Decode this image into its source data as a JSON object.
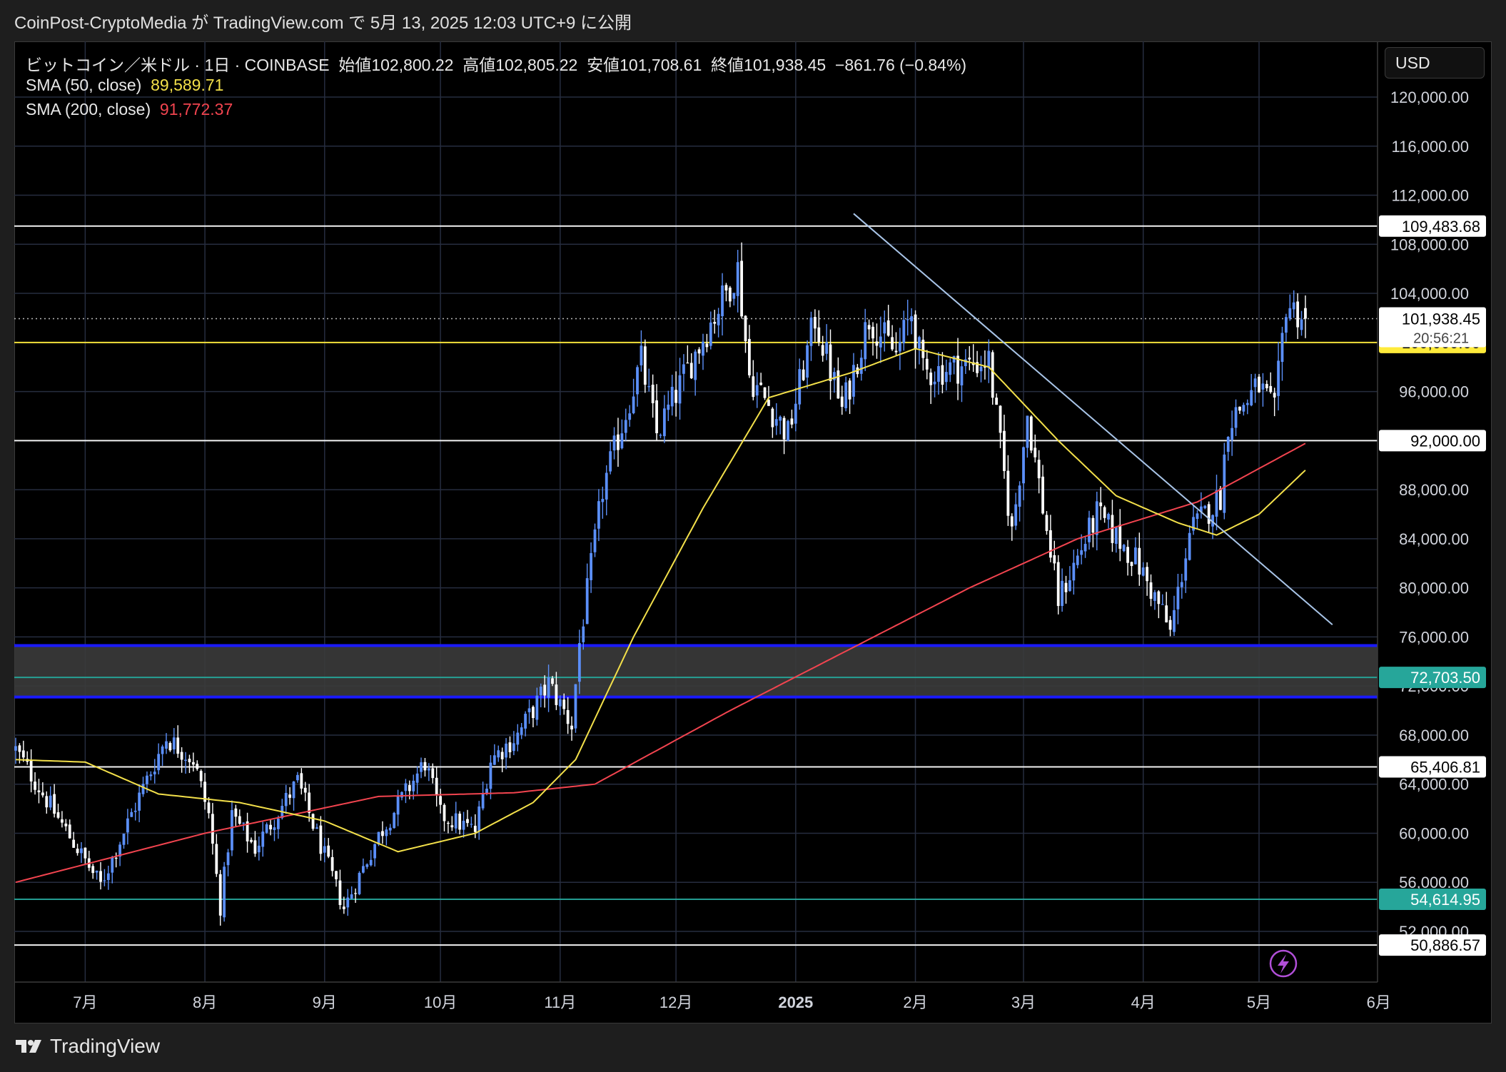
{
  "header": {
    "caption": "CoinPost-CryptoMedia が TradingView.com で 5月 13, 2025 12:03 UTC+9 に公開"
  },
  "legend": {
    "symbol": "ビットコイン／米ドル · 1日 · COINBASE",
    "open_label": "始値",
    "open": "102,800.22",
    "high_label": "高値",
    "high": "102,805.22",
    "low_label": "安値",
    "low": "101,708.61",
    "close_label": "終値",
    "close": "101,938.45",
    "change": "−861.76 (−0.84%)",
    "sma50_label": "SMA (50, close)",
    "sma50_value": "89,589.71",
    "sma200_label": "SMA (200, close)",
    "sma200_value": "91,772.37"
  },
  "toolbar": {
    "currency": "USD"
  },
  "footer": {
    "brand": "TradingView"
  },
  "colors": {
    "up": "#5b8ff9",
    "down": "#ffffff",
    "sma50": "#f3e04a",
    "sma200": "#f2444f",
    "grid": "#262d3f",
    "trendline": "#a9c5e8",
    "zone": "#3b3b3b",
    "zone_border": "#1a1aff",
    "teal": "#26a69a",
    "yellow": "#ffeb3b"
  },
  "chart_data": {
    "type": "candlestick",
    "ylim": [
      48000,
      122000
    ],
    "y_ticks": [
      "120,000.00",
      "116,000.00",
      "112,000.00",
      "108,000.00",
      "104,000.00",
      "100,000.00",
      "96,000.00",
      "92,000.00",
      "88,000.00",
      "84,000.00",
      "80,000.00",
      "76,000.00",
      "72,000.00",
      "68,000.00",
      "64,000.00",
      "60,000.00",
      "56,000.00",
      "52,000.00"
    ],
    "x_ticks": [
      {
        "label": "7月",
        "date": "2024-07-01"
      },
      {
        "label": "8月",
        "date": "2024-08-01"
      },
      {
        "label": "9月",
        "date": "2024-09-01"
      },
      {
        "label": "10月",
        "date": "2024-10-01"
      },
      {
        "label": "11月",
        "date": "2024-11-01"
      },
      {
        "label": "12月",
        "date": "2024-12-01"
      },
      {
        "label": "2025",
        "date": "2025-01-01",
        "bold": true
      },
      {
        "label": "2月",
        "date": "2025-02-01"
      },
      {
        "label": "3月",
        "date": "2025-03-01"
      },
      {
        "label": "4月",
        "date": "2025-04-01"
      },
      {
        "label": "5月",
        "date": "2025-05-01"
      },
      {
        "label": "6月",
        "date": "2025-06-01"
      }
    ],
    "x_range": [
      "2024-06-13",
      "2025-06-07"
    ],
    "price_anchors": [
      [
        "2024-06-13",
        66800
      ],
      [
        "2024-06-24",
        61200
      ],
      [
        "2024-07-05",
        55800
      ],
      [
        "2024-07-15",
        63000
      ],
      [
        "2024-07-22",
        67800
      ],
      [
        "2024-07-29",
        66000
      ],
      [
        "2024-08-02",
        61500
      ],
      [
        "2024-08-05",
        54000
      ],
      [
        "2024-08-08",
        61500
      ],
      [
        "2024-08-14",
        58800
      ],
      [
        "2024-08-25",
        64200
      ],
      [
        "2024-08-31",
        59000
      ],
      [
        "2024-09-06",
        53900
      ],
      [
        "2024-09-15",
        59800
      ],
      [
        "2024-09-27",
        65800
      ],
      [
        "2024-10-01",
        61500
      ],
      [
        "2024-10-10",
        60200
      ],
      [
        "2024-10-14",
        66000
      ],
      [
        "2024-10-21",
        68000
      ],
      [
        "2024-10-29",
        72200
      ],
      [
        "2024-11-04",
        68800
      ],
      [
        "2024-11-06",
        75500
      ],
      [
        "2024-11-12",
        88000
      ],
      [
        "2024-11-22",
        98500
      ],
      [
        "2024-11-26",
        92500
      ],
      [
        "2024-12-05",
        98500
      ],
      [
        "2024-12-17",
        106000
      ],
      [
        "2024-12-20",
        97300
      ],
      [
        "2024-12-30",
        92500
      ],
      [
        "2025-01-06",
        102000
      ],
      [
        "2025-01-13",
        94500
      ],
      [
        "2025-01-20",
        102000
      ],
      [
        "2025-01-27",
        99000
      ],
      [
        "2025-01-31",
        102400
      ],
      [
        "2025-02-03",
        97500
      ],
      [
        "2025-02-20",
        98500
      ],
      [
        "2025-02-26",
        84500
      ],
      [
        "2025-03-02",
        94200
      ],
      [
        "2025-03-10",
        79000
      ],
      [
        "2025-03-20",
        86000
      ],
      [
        "2025-03-30",
        82300
      ],
      [
        "2025-04-06",
        78000
      ],
      [
        "2025-04-08",
        76300
      ],
      [
        "2025-04-13",
        84500
      ],
      [
        "2025-04-21",
        87500
      ],
      [
        "2025-04-23",
        93500
      ],
      [
        "2025-05-01",
        96500
      ],
      [
        "2025-05-05",
        94200
      ],
      [
        "2025-05-08",
        103200
      ],
      [
        "2025-05-13",
        101938.45
      ]
    ],
    "sma50_anchors": [
      [
        "2024-06-13",
        66000
      ],
      [
        "2024-07-01",
        65800
      ],
      [
        "2024-07-20",
        63200
      ],
      [
        "2024-08-10",
        62500
      ],
      [
        "2024-09-01",
        61000
      ],
      [
        "2024-09-20",
        58500
      ],
      [
        "2024-10-10",
        60000
      ],
      [
        "2024-10-25",
        62500
      ],
      [
        "2024-11-05",
        66000
      ],
      [
        "2024-11-20",
        76000
      ],
      [
        "2024-12-08",
        86500
      ],
      [
        "2024-12-25",
        95500
      ],
      [
        "2025-01-15",
        97500
      ],
      [
        "2025-02-01",
        99500
      ],
      [
        "2025-02-20",
        98000
      ],
      [
        "2025-03-10",
        92000
      ],
      [
        "2025-03-25",
        87500
      ],
      [
        "2025-04-10",
        85300
      ],
      [
        "2025-04-20",
        84300
      ],
      [
        "2025-05-01",
        86000
      ],
      [
        "2025-05-13",
        89589.71
      ]
    ],
    "sma200_anchors": [
      [
        "2024-06-13",
        56000
      ],
      [
        "2024-08-01",
        60000
      ],
      [
        "2024-09-15",
        63000
      ],
      [
        "2024-10-20",
        63300
      ],
      [
        "2024-11-10",
        64000
      ],
      [
        "2024-12-15",
        70000
      ],
      [
        "2025-01-15",
        75000
      ],
      [
        "2025-02-15",
        80000
      ],
      [
        "2025-03-15",
        84000
      ],
      [
        "2025-04-15",
        87000
      ],
      [
        "2025-05-13",
        91772.37
      ]
    ],
    "horizontal_levels": [
      {
        "value": 109483.68,
        "label": "109,483.68",
        "color": "#ffffff"
      },
      {
        "value": 100000.0,
        "label": "100,000.00",
        "color": "#ffeb3b"
      },
      {
        "value": 92000.0,
        "label": "92,000.00",
        "color": "#ffffff"
      },
      {
        "value": 72703.5,
        "label": "72,703.50",
        "color": "#26a69a"
      },
      {
        "value": 65406.81,
        "label": "65,406.81",
        "color": "#ffffff"
      },
      {
        "value": 54614.95,
        "label": "54,614.95",
        "color": "#26a69a"
      },
      {
        "value": 50886.57,
        "label": "50,886.57",
        "color": "#ffffff"
      }
    ],
    "current_price": {
      "value": 101938.45,
      "label": "101,938.45",
      "countdown": "20:56:21"
    },
    "zone": {
      "low": 71100,
      "high": 75300
    },
    "trendline": {
      "start": [
        "2025-01-16",
        110500
      ],
      "end": [
        "2025-05-20",
        77000
      ]
    }
  }
}
